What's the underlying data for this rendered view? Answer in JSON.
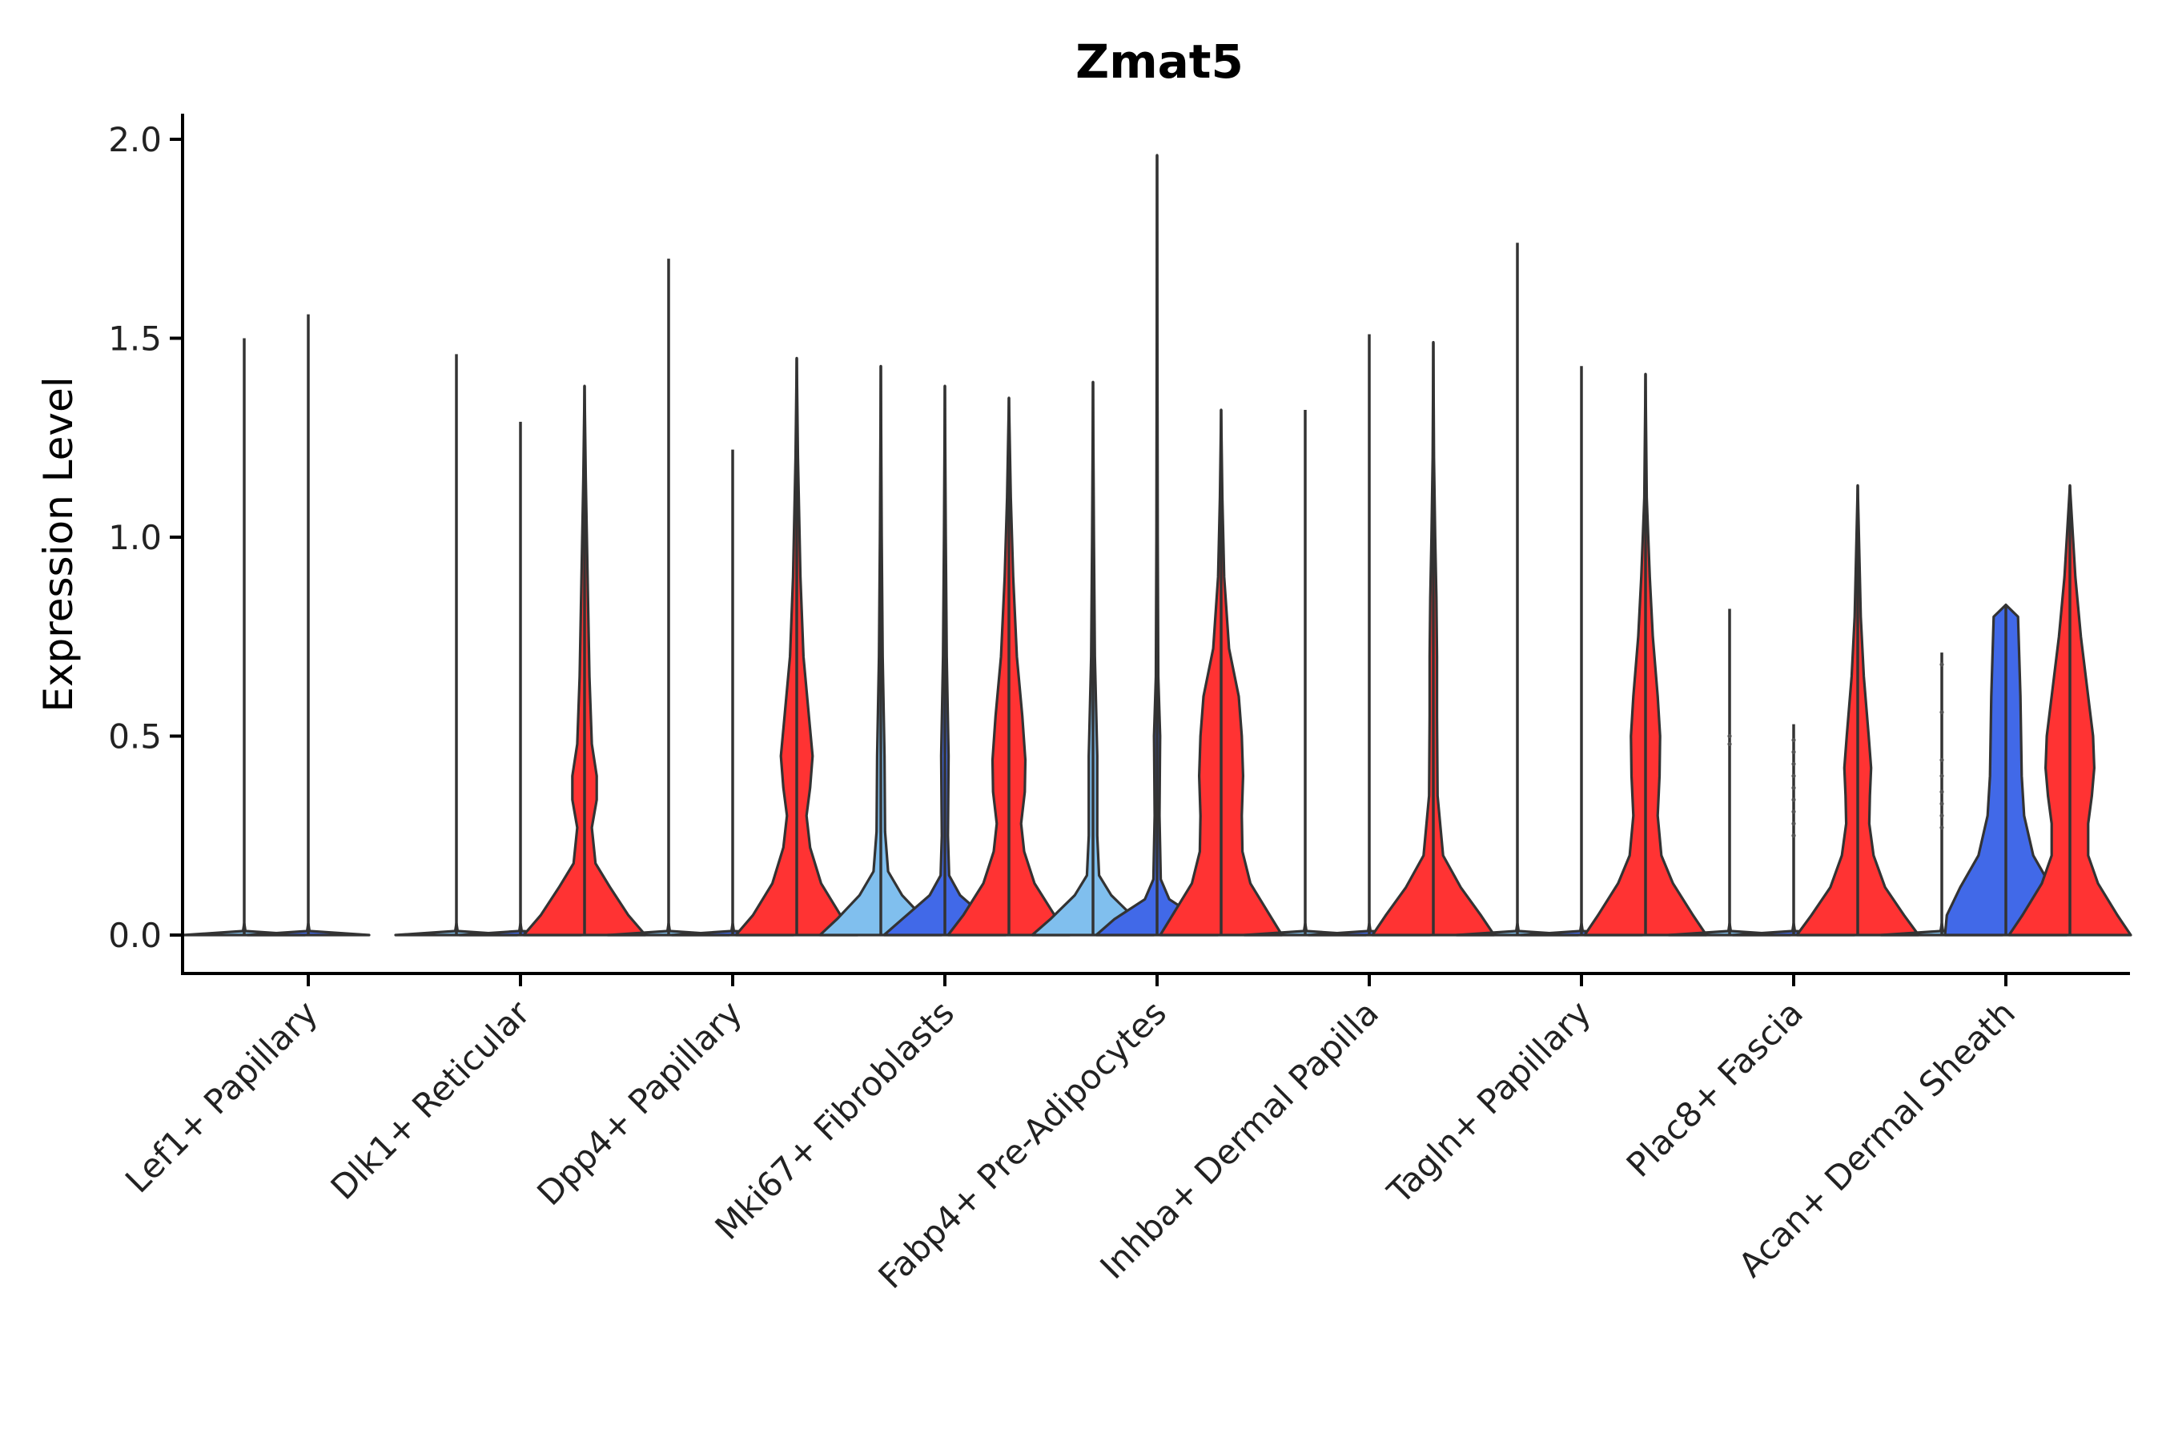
{
  "chart_data": {
    "type": "violin",
    "title": "Zmat5",
    "xlabel": "",
    "ylabel": "Expression Level",
    "ylim": [
      -0.1,
      2.07
    ],
    "yticks": [
      "0.0",
      "0.5",
      "1.0",
      "1.5",
      "2.0"
    ],
    "ytick_values": [
      0,
      0.5,
      1.0,
      1.5,
      2.0
    ],
    "grid": false,
    "legend": "none",
    "colors": {
      "light_blue": "#80bfee",
      "blue": "#4169e8",
      "red": "#ff3333"
    },
    "categories": [
      "Lef1+ Papillary",
      "Dlk1+ Reticular",
      "Dpp4+ Papillary",
      "Mki67+ Fibroblasts",
      "Fabp4+ Pre-Adipocytes",
      "Inhba+ Dermal Papilla",
      "Tagln+ Papillary",
      "Plac8+ Fascia",
      "Acan+ Dermal Sheath"
    ],
    "violins": [
      {
        "category": "Lef1+ Papillary",
        "slot": 0,
        "color": "light_blue",
        "max": 1.5,
        "profile": [
          [
            0,
            1
          ],
          [
            0.01,
            0.02
          ],
          [
            0.03,
            0
          ]
        ]
      },
      {
        "category": "Lef1+ Papillary",
        "slot": 1,
        "color": "blue",
        "max": 1.56,
        "profile": [
          [
            0,
            1
          ],
          [
            0.01,
            0.02
          ],
          [
            0.03,
            0
          ]
        ]
      },
      {
        "category": "Dlk1+ Reticular",
        "slot": 0,
        "color": "light_blue",
        "max": 1.46,
        "profile": [
          [
            0,
            1
          ],
          [
            0.01,
            0.02
          ],
          [
            0.03,
            0
          ]
        ]
      },
      {
        "category": "Dlk1+ Reticular",
        "slot": 1,
        "color": "blue",
        "max": 1.29,
        "profile": [
          [
            0,
            1
          ],
          [
            0.01,
            0.02
          ],
          [
            0.03,
            0
          ]
        ]
      },
      {
        "category": "Dlk1+ Reticular",
        "slot": 2,
        "color": "red",
        "max": 1.38,
        "profile": [
          [
            0,
            1
          ],
          [
            0.05,
            0.72
          ],
          [
            0.12,
            0.42
          ],
          [
            0.18,
            0.18
          ],
          [
            0.27,
            0.12
          ],
          [
            0.34,
            0.2
          ],
          [
            0.4,
            0.2
          ],
          [
            0.48,
            0.12
          ],
          [
            0.65,
            0.08
          ],
          [
            0.9,
            0.05
          ],
          [
            1.15,
            0.02
          ],
          [
            1.38,
            0
          ]
        ]
      },
      {
        "category": "Dpp4+ Papillary",
        "slot": 0,
        "color": "light_blue",
        "max": 1.7,
        "profile": [
          [
            0,
            1
          ],
          [
            0.01,
            0.02
          ],
          [
            0.03,
            0
          ]
        ]
      },
      {
        "category": "Dpp4+ Papillary",
        "slot": 1,
        "color": "blue",
        "max": 1.22,
        "profile": [
          [
            0,
            1
          ],
          [
            0.01,
            0.02
          ],
          [
            0.03,
            0
          ]
        ]
      },
      {
        "category": "Dpp4+ Papillary",
        "slot": 2,
        "color": "red",
        "max": 1.45,
        "profile": [
          [
            0,
            1
          ],
          [
            0.05,
            0.72
          ],
          [
            0.13,
            0.4
          ],
          [
            0.22,
            0.22
          ],
          [
            0.3,
            0.16
          ],
          [
            0.37,
            0.22
          ],
          [
            0.45,
            0.26
          ],
          [
            0.55,
            0.2
          ],
          [
            0.7,
            0.11
          ],
          [
            0.9,
            0.06
          ],
          [
            1.2,
            0.02
          ],
          [
            1.45,
            0
          ]
        ]
      },
      {
        "category": "Mki67+ Fibroblasts",
        "slot": 0,
        "color": "light_blue",
        "max": 1.43,
        "profile": [
          [
            0,
            1
          ],
          [
            0.04,
            0.72
          ],
          [
            0.1,
            0.35
          ],
          [
            0.16,
            0.12
          ],
          [
            0.26,
            0.07
          ],
          [
            0.45,
            0.06
          ],
          [
            0.7,
            0.03
          ],
          [
            1.0,
            0.015
          ],
          [
            1.43,
            0
          ]
        ]
      },
      {
        "category": "Mki67+ Fibroblasts",
        "slot": 1,
        "color": "blue",
        "max": 1.38,
        "profile": [
          [
            0,
            1
          ],
          [
            0.04,
            0.7
          ],
          [
            0.1,
            0.25
          ],
          [
            0.15,
            0.07
          ],
          [
            0.25,
            0.05
          ],
          [
            0.45,
            0.06
          ],
          [
            0.7,
            0.03
          ],
          [
            1.0,
            0.015
          ],
          [
            1.38,
            0
          ]
        ]
      },
      {
        "category": "Mki67+ Fibroblasts",
        "slot": 2,
        "color": "red",
        "max": 1.35,
        "profile": [
          [
            0,
            1
          ],
          [
            0.05,
            0.75
          ],
          [
            0.13,
            0.42
          ],
          [
            0.21,
            0.25
          ],
          [
            0.28,
            0.2
          ],
          [
            0.36,
            0.26
          ],
          [
            0.44,
            0.27
          ],
          [
            0.55,
            0.22
          ],
          [
            0.7,
            0.13
          ],
          [
            0.9,
            0.07
          ],
          [
            1.1,
            0.03
          ],
          [
            1.35,
            0
          ]
        ]
      },
      {
        "category": "Fabp4+ Pre-Adipocytes",
        "slot": 0,
        "color": "light_blue",
        "max": 1.39,
        "profile": [
          [
            0,
            1
          ],
          [
            0.04,
            0.7
          ],
          [
            0.1,
            0.3
          ],
          [
            0.15,
            0.1
          ],
          [
            0.25,
            0.07
          ],
          [
            0.45,
            0.07
          ],
          [
            0.7,
            0.03
          ],
          [
            1.0,
            0.015
          ],
          [
            1.39,
            0
          ]
        ]
      },
      {
        "category": "Fabp4+ Pre-Adipocytes",
        "slot": 1,
        "color": "blue",
        "max": 1.96,
        "profile": [
          [
            0,
            1
          ],
          [
            0.04,
            0.7
          ],
          [
            0.09,
            0.2
          ],
          [
            0.14,
            0.06
          ],
          [
            0.3,
            0.04
          ],
          [
            0.5,
            0.05
          ],
          [
            0.65,
            0.02
          ],
          [
            1.0,
            0.01
          ],
          [
            1.96,
            0
          ]
        ]
      },
      {
        "category": "Fabp4+ Pre-Adipocytes",
        "slot": 2,
        "color": "red",
        "max": 1.32,
        "profile": [
          [
            0,
            1
          ],
          [
            0.05,
            0.8
          ],
          [
            0.13,
            0.48
          ],
          [
            0.21,
            0.35
          ],
          [
            0.3,
            0.34
          ],
          [
            0.4,
            0.36
          ],
          [
            0.5,
            0.34
          ],
          [
            0.6,
            0.29
          ],
          [
            0.72,
            0.13
          ],
          [
            0.9,
            0.05
          ],
          [
            1.1,
            0.02
          ],
          [
            1.32,
            0
          ]
        ]
      },
      {
        "category": "Inhba+ Dermal Papilla",
        "slot": 0,
        "color": "light_blue",
        "max": 1.32,
        "profile": [
          [
            0,
            1
          ],
          [
            0.01,
            0.02
          ],
          [
            0.03,
            0
          ]
        ]
      },
      {
        "category": "Inhba+ Dermal Papilla",
        "slot": 1,
        "color": "blue",
        "max": 1.51,
        "profile": [
          [
            0,
            1
          ],
          [
            0.01,
            0.02
          ],
          [
            0.03,
            0
          ]
        ]
      },
      {
        "category": "Inhba+ Dermal Papilla",
        "slot": 2,
        "color": "red",
        "max": 1.49,
        "profile": [
          [
            0,
            1
          ],
          [
            0.05,
            0.78
          ],
          [
            0.12,
            0.45
          ],
          [
            0.2,
            0.16
          ],
          [
            0.35,
            0.07
          ],
          [
            0.55,
            0.06
          ],
          [
            0.7,
            0.06
          ],
          [
            0.85,
            0.05
          ],
          [
            1.0,
            0.03
          ],
          [
            1.2,
            0.01
          ],
          [
            1.49,
            0
          ]
        ]
      },
      {
        "category": "Tagln+ Papillary",
        "slot": 0,
        "color": "light_blue",
        "max": 1.74,
        "profile": [
          [
            0,
            1
          ],
          [
            0.01,
            0.02
          ],
          [
            0.03,
            0
          ]
        ]
      },
      {
        "category": "Tagln+ Papillary",
        "slot": 1,
        "color": "blue",
        "max": 1.43,
        "profile": [
          [
            0,
            1
          ],
          [
            0.01,
            0.02
          ],
          [
            0.03,
            0
          ]
        ]
      },
      {
        "category": "Tagln+ Papillary",
        "slot": 2,
        "color": "red",
        "max": 1.41,
        "profile": [
          [
            0,
            1
          ],
          [
            0.05,
            0.78
          ],
          [
            0.13,
            0.45
          ],
          [
            0.2,
            0.26
          ],
          [
            0.3,
            0.2
          ],
          [
            0.4,
            0.23
          ],
          [
            0.5,
            0.24
          ],
          [
            0.6,
            0.2
          ],
          [
            0.75,
            0.12
          ],
          [
            0.9,
            0.07
          ],
          [
            1.1,
            0.02
          ],
          [
            1.41,
            0
          ]
        ]
      },
      {
        "category": "Plac8+ Fascia",
        "slot": 0,
        "color": "light_blue",
        "max": 0.82,
        "profile": [
          [
            0,
            1
          ],
          [
            0.01,
            0.02
          ],
          [
            0.03,
            0
          ]
        ]
      },
      {
        "category": "Plac8+ Fascia",
        "slot": 1,
        "color": "blue",
        "max": 0.53,
        "profile": [
          [
            0,
            1
          ],
          [
            0.01,
            0.02
          ],
          [
            0.03,
            0
          ]
        ]
      },
      {
        "category": "Plac8+ Fascia",
        "slot": 2,
        "color": "red",
        "max": 1.13,
        "profile": [
          [
            0,
            1
          ],
          [
            0.05,
            0.76
          ],
          [
            0.12,
            0.45
          ],
          [
            0.2,
            0.26
          ],
          [
            0.28,
            0.19
          ],
          [
            0.35,
            0.2
          ],
          [
            0.42,
            0.22
          ],
          [
            0.5,
            0.18
          ],
          [
            0.65,
            0.1
          ],
          [
            0.8,
            0.05
          ],
          [
            1.0,
            0.02
          ],
          [
            1.13,
            0
          ]
        ]
      },
      {
        "category": "Acan+ Dermal Sheath",
        "slot": 0,
        "color": "light_blue",
        "max": 0.71,
        "profile": [
          [
            0,
            1
          ],
          [
            0.01,
            0.02
          ],
          [
            0.03,
            0
          ]
        ]
      },
      {
        "category": "Acan+ Dermal Sheath",
        "slot": 1,
        "color": "blue",
        "max": 0.83,
        "profile": [
          [
            0,
            1
          ],
          [
            0.05,
            0.97
          ],
          [
            0.12,
            0.75
          ],
          [
            0.2,
            0.45
          ],
          [
            0.3,
            0.3
          ],
          [
            0.4,
            0.26
          ],
          [
            0.5,
            0.25
          ],
          [
            0.6,
            0.24
          ],
          [
            0.7,
            0.22
          ],
          [
            0.8,
            0.2
          ],
          [
            0.83,
            0
          ]
        ]
      },
      {
        "category": "Acan+ Dermal Sheath",
        "slot": 2,
        "color": "red",
        "max": 1.13,
        "profile": [
          [
            0,
            1
          ],
          [
            0.05,
            0.78
          ],
          [
            0.13,
            0.46
          ],
          [
            0.2,
            0.3
          ],
          [
            0.28,
            0.3
          ],
          [
            0.35,
            0.36
          ],
          [
            0.42,
            0.4
          ],
          [
            0.5,
            0.38
          ],
          [
            0.6,
            0.3
          ],
          [
            0.75,
            0.18
          ],
          [
            0.9,
            0.09
          ],
          [
            1.0,
            0.05
          ],
          [
            1.13,
            0
          ]
        ]
      }
    ],
    "jitter_points": [
      {
        "category": "Plac8+ Fascia",
        "slot": 0,
        "values": [
          0.5,
          0.48
        ]
      },
      {
        "category": "Plac8+ Fascia",
        "slot": 1,
        "values": [
          0.49,
          0.46,
          0.43,
          0.4,
          0.37,
          0.34,
          0.31,
          0.28,
          0.25
        ]
      },
      {
        "category": "Acan+ Dermal Sheath",
        "slot": 0,
        "values": [
          0.68,
          0.56,
          0.44,
          0.4,
          0.36,
          0.33,
          0.3,
          0.27
        ]
      }
    ]
  }
}
